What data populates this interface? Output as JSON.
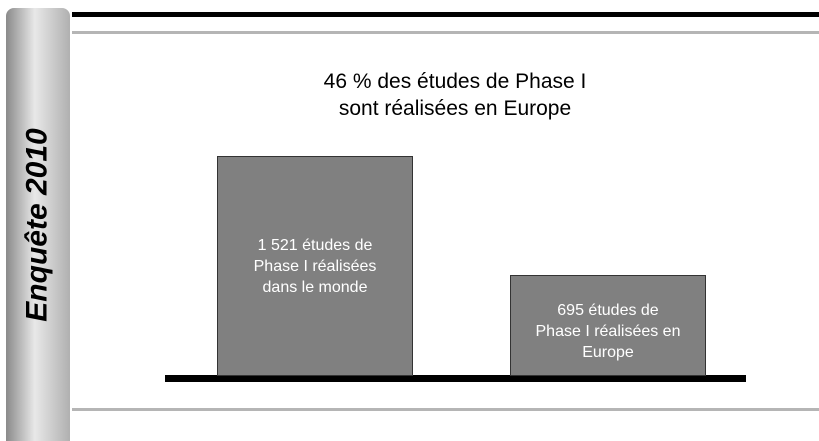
{
  "sidebar": {
    "label": "Enquête 2010"
  },
  "chart_data": {
    "type": "bar",
    "title": "46 % des études de Phase I sont réalisées en Europe",
    "values": [
      1521,
      695
    ],
    "value_labels": [
      "1 521 études de Phase I réalisées dans le monde",
      "695 études de Phase I réalisées en Europe"
    ],
    "color": "#808080"
  }
}
